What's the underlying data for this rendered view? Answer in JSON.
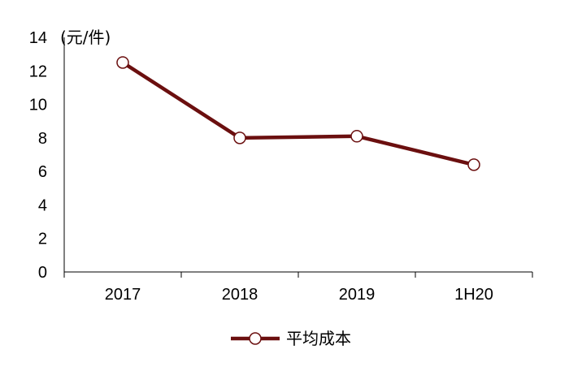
{
  "chart_data": {
    "type": "line",
    "categories": [
      "2017",
      "2018",
      "2019",
      "1H20"
    ],
    "series": [
      {
        "name": "平均成本",
        "values": [
          12.5,
          8.0,
          8.1,
          6.4
        ],
        "color": "#6b0f0f",
        "marker": "hollow-circle"
      }
    ],
    "ylabel": "(元/件)",
    "ylim": [
      0,
      14
    ],
    "yticks": [
      "0",
      "2",
      "4",
      "6",
      "8",
      "10",
      "12",
      "14"
    ],
    "grid": false,
    "legend_position": "bottom-center"
  }
}
